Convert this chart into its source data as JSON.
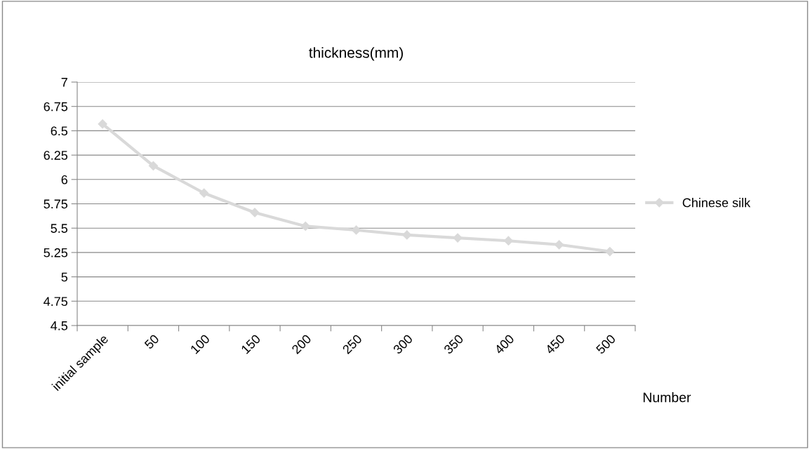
{
  "chart_data": {
    "type": "line",
    "title": "thickness(mm)",
    "xlabel": "Number",
    "categories": [
      "initial sample",
      "50",
      "100",
      "150",
      "200",
      "250",
      "300",
      "350",
      "400",
      "450",
      "500"
    ],
    "series": [
      {
        "name": "Chinese silk",
        "color": "#d9d9d9",
        "values": [
          6.57,
          6.14,
          5.86,
          5.66,
          5.52,
          5.48,
          5.43,
          5.4,
          5.37,
          5.33,
          5.26
        ]
      }
    ],
    "ylim": [
      4.5,
      7
    ],
    "yticks": [
      4.5,
      4.75,
      5,
      5.25,
      5.5,
      5.75,
      6,
      6.25,
      6.5,
      6.75,
      7
    ],
    "grid": "y",
    "legend": "right",
    "marker": "diamond",
    "line_style": "solid"
  }
}
